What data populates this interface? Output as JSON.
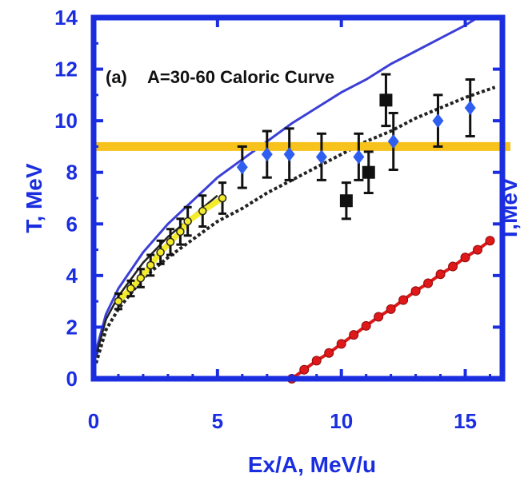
{
  "chart_data": {
    "type": "scatter",
    "annotation_panel": "(a)",
    "annotation_title": "A=30-60 Caloric Curve",
    "xlabel": "Ex/A, MeV/u",
    "ylabel": "T, MeV",
    "ylabel_right": "T,MeV",
    "xlim": [
      0,
      16.5
    ],
    "ylim": [
      0,
      14
    ],
    "x_ticks": [
      "0",
      "5",
      "10",
      "15"
    ],
    "y_ticks": [
      "0",
      "2",
      "4",
      "6",
      "8",
      "10",
      "12",
      "14"
    ],
    "colors": {
      "axis": "#1a2ee0",
      "blue_curve": "#3b3fd6",
      "black_curve": "#222222",
      "yellow": "#f4ec2a",
      "orange_band": "#f7c21c",
      "red": "#e0181a",
      "diamond": "#2f5ff0",
      "square": "#111111"
    },
    "horizontal_band": {
      "y": 9.0
    },
    "series": [
      {
        "kind": "curve",
        "color": "#3b3fd6",
        "x": [
          0.1,
          0.5,
          1,
          2,
          3,
          4,
          5,
          6,
          7,
          8,
          9,
          10,
          11,
          12,
          13,
          14,
          15,
          15.5
        ],
        "y": [
          1.1,
          2.5,
          3.5,
          4.9,
          6.0,
          6.9,
          7.8,
          8.5,
          9.2,
          9.9,
          10.5,
          11.1,
          11.6,
          12.2,
          12.7,
          13.2,
          13.7,
          14.0
        ]
      },
      {
        "kind": "curve-solid",
        "color": "#222222",
        "x": [
          0.1,
          0.5,
          1,
          2,
          3,
          4,
          5
        ],
        "y": [
          0.9,
          2.3,
          3.2,
          4.5,
          5.5,
          6.3,
          7.1
        ]
      },
      {
        "kind": "curve-dotted",
        "color": "#222222",
        "x": [
          0.1,
          0.5,
          1,
          2,
          3,
          4,
          5,
          6,
          7,
          8,
          9,
          10,
          11,
          12,
          13,
          14,
          15,
          16.2
        ],
        "y": [
          0.6,
          1.9,
          2.7,
          3.9,
          4.7,
          5.4,
          6.1,
          6.6,
          7.2,
          7.7,
          8.2,
          8.7,
          9.2,
          9.6,
          10.1,
          10.5,
          10.9,
          11.3
        ]
      },
      {
        "kind": "yellow-points",
        "color": "#f4ec2a",
        "x": [
          1.0,
          1.5,
          1.9,
          2.3,
          2.7,
          3.1,
          3.5,
          3.8,
          4.4,
          5.2
        ],
        "y": [
          3.0,
          3.5,
          3.9,
          4.4,
          4.9,
          5.3,
          5.7,
          6.1,
          6.5,
          7.0
        ],
        "err": [
          0.3,
          0.3,
          0.35,
          0.4,
          0.45,
          0.5,
          0.5,
          0.55,
          0.6,
          0.6
        ]
      },
      {
        "kind": "diamonds",
        "color": "#2f5ff0",
        "x": [
          6.0,
          7.0,
          7.9,
          9.2,
          10.7,
          12.1,
          13.9,
          15.2
        ],
        "y": [
          8.2,
          8.7,
          8.7,
          8.6,
          8.6,
          9.2,
          10.0,
          10.5
        ],
        "err": [
          0.8,
          0.9,
          1.0,
          0.9,
          0.9,
          1.1,
          1.0,
          1.1
        ]
      },
      {
        "kind": "squares",
        "color": "#111111",
        "x": [
          10.2,
          11.1,
          11.8
        ],
        "y": [
          6.9,
          8.0,
          10.8
        ],
        "err": [
          0.7,
          0.8,
          1.0
        ]
      },
      {
        "kind": "red-points",
        "color": "#e0181a",
        "x": [
          8.0,
          8.5,
          9.0,
          9.5,
          10.0,
          10.5,
          11.0,
          11.5,
          12.0,
          12.5,
          13.0,
          13.5,
          14.0,
          14.5,
          15.0,
          15.5,
          16.0
        ],
        "y": [
          0.0,
          0.35,
          0.7,
          1.0,
          1.35,
          1.7,
          2.05,
          2.4,
          2.7,
          3.05,
          3.4,
          3.7,
          4.05,
          4.35,
          4.7,
          5.0,
          5.35
        ]
      }
    ]
  }
}
